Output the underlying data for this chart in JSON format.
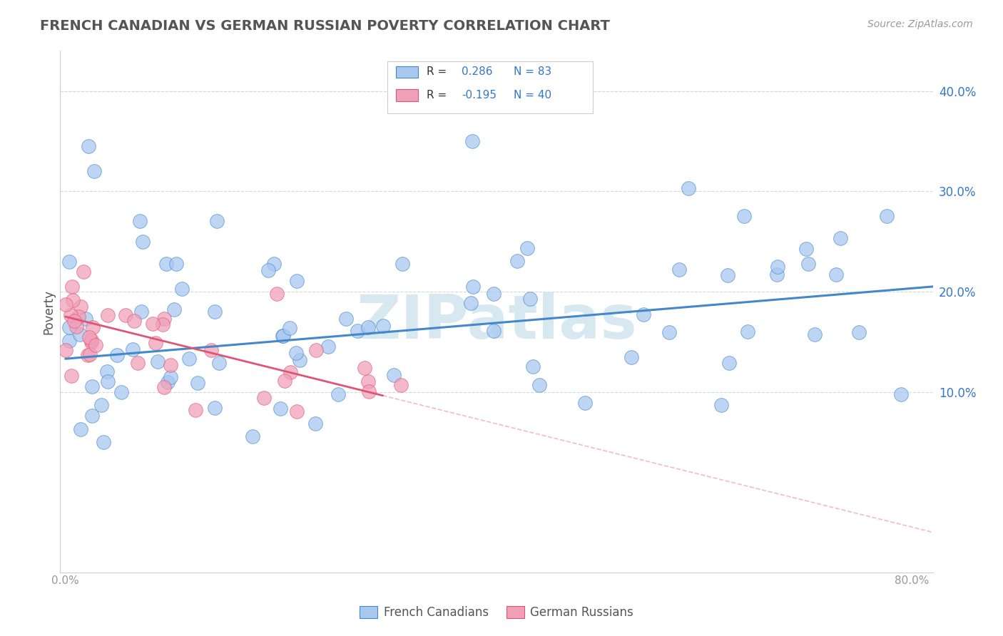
{
  "title": "FRENCH CANADIAN VS GERMAN RUSSIAN POVERTY CORRELATION CHART",
  "source": "Source: ZipAtlas.com",
  "ylabel": "Poverty",
  "ytick_vals": [
    0.1,
    0.2,
    0.3,
    0.4
  ],
  "ytick_labels": [
    "10.0%",
    "20.0%",
    "30.0%",
    "40.0%"
  ],
  "xtick_labels_bottom": [
    "0.0%",
    "80.0%"
  ],
  "legend_labels": [
    "French Canadians",
    "German Russians"
  ],
  "blue_color": "#a8c8f0",
  "pink_color": "#f0a0b8",
  "line_blue": "#4488cc",
  "line_pink": "#e05575",
  "watermark": "ZIPatlas",
  "watermark_color": "#d8e8f0",
  "title_color": "#555555",
  "source_color": "#999999",
  "grid_color": "#d0d8e0",
  "tick_color": "#999999",
  "legend_r_color": "#3377cc",
  "legend_text_color": "#333333",
  "xlim": [
    -0.005,
    0.82
  ],
  "ylim": [
    -0.08,
    0.44
  ],
  "fc_trend_x0": 0.0,
  "fc_trend_y0": 0.133,
  "fc_trend_x1": 0.82,
  "fc_trend_y1": 0.205,
  "gr_trend_x0": 0.0,
  "gr_trend_y0": 0.175,
  "gr_trend_x1_solid": 0.3,
  "gr_trend_x1": 0.82,
  "gr_trend_y1": -0.04
}
